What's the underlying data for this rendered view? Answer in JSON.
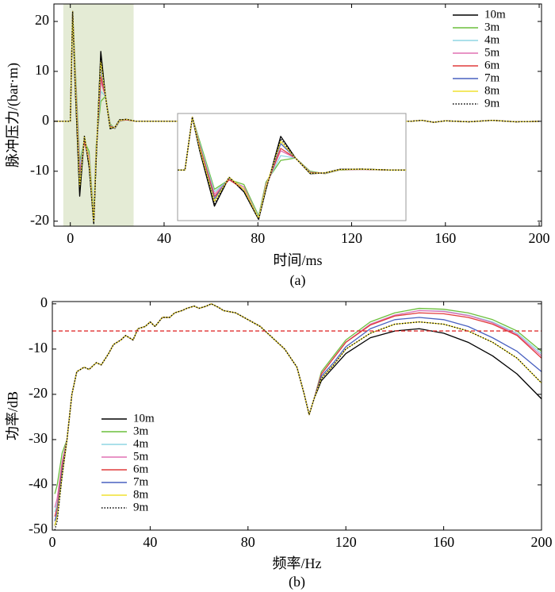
{
  "chart_data": [
    {
      "type": "line",
      "x_label": "时间/ms",
      "y_label": "脉冲压力/(bar·m)",
      "caption": "(a)",
      "xlim": [
        -7,
        201
      ],
      "ylim": [
        -21,
        23.5
      ],
      "xticks": [
        0,
        40,
        80,
        120,
        160,
        200
      ],
      "yticks": [
        -20,
        -10,
        0,
        10,
        20
      ],
      "legend": "upper right",
      "highlight_xspan": [
        -3,
        27
      ],
      "highlight_color": "#e4ebd5",
      "inset_xlim": [
        -1,
        30
      ],
      "x": [
        -7,
        0,
        1,
        2,
        4,
        6,
        8,
        10,
        11,
        13,
        15,
        17,
        19,
        21,
        24,
        28,
        40,
        100,
        145,
        150,
        155,
        160,
        170,
        180,
        190,
        200
      ],
      "series": [
        {
          "name": "10m",
          "color": "#000000",
          "values": [
            0,
            0,
            22,
            8,
            -15,
            -3,
            -9,
            -20.5,
            -8,
            14,
            5,
            -1.5,
            -1.2,
            0.3,
            0.4,
            0,
            0,
            0,
            0,
            0.2,
            -0.2,
            0.1,
            -0.1,
            0.2,
            -0.1,
            0
          ]
        },
        {
          "name": "3m",
          "color": "#6cbf3c",
          "values": [
            0,
            0,
            22,
            12,
            -8,
            -4,
            -6,
            -19,
            -5,
            4,
            5,
            -0.5,
            -1.5,
            0,
            0.3,
            0,
            0,
            0,
            0,
            0.2,
            -0.2,
            0.1,
            -0.1,
            0.2,
            -0.1,
            0
          ]
        },
        {
          "name": "4m",
          "color": "#8fd6e3",
          "values": [
            0,
            0,
            22,
            11,
            -9,
            -4,
            -7,
            -19.5,
            -6,
            6,
            5,
            -0.8,
            -1.4,
            0.1,
            0.3,
            0,
            0,
            0,
            0,
            0.2,
            -0.2,
            0.1,
            -0.1,
            0.2,
            -0.1,
            0
          ]
        },
        {
          "name": "5m",
          "color": "#e070b4",
          "values": [
            0,
            0,
            22,
            10,
            -10,
            -4,
            -7,
            -20,
            -6,
            8,
            5,
            -1,
            -1.4,
            0.1,
            0.3,
            0,
            0,
            0,
            0,
            0.2,
            -0.2,
            0.1,
            -0.1,
            0.2,
            -0.1,
            0
          ]
        },
        {
          "name": "6m",
          "color": "#e03c3c",
          "values": [
            0,
            0,
            22,
            10,
            -11,
            -4,
            -8,
            -20,
            -7,
            9,
            5,
            -1,
            -1.3,
            0.2,
            0.3,
            0,
            0,
            0,
            0,
            0.2,
            -0.2,
            0.1,
            -0.1,
            0.2,
            -0.1,
            0
          ]
        },
        {
          "name": "7m",
          "color": "#4860c0",
          "values": [
            0,
            0,
            22,
            9,
            -12,
            -3,
            -8,
            -20,
            -7,
            11,
            5,
            -1.2,
            -1.3,
            0.2,
            0.4,
            0,
            0,
            0,
            0,
            0.2,
            -0.2,
            0.1,
            -0.1,
            0.2,
            -0.1,
            0
          ]
        },
        {
          "name": "8m",
          "color": "#f0e030",
          "values": [
            0,
            0,
            22,
            9,
            -13,
            -3,
            -8,
            -20,
            -7,
            12,
            5,
            -1.3,
            -1.2,
            0.2,
            0.4,
            0,
            0,
            0,
            0,
            0.2,
            -0.2,
            0.1,
            -0.1,
            0.2,
            -0.1,
            0
          ]
        },
        {
          "name": "9m",
          "color": "#000000",
          "linestyle": "dotted",
          "values": [
            0,
            0,
            22,
            8,
            -14,
            -3,
            -9,
            -20.5,
            -8,
            13,
            5,
            -1.4,
            -1.2,
            0.3,
            0.4,
            0,
            0,
            0,
            0,
            0.2,
            -0.2,
            0.1,
            -0.1,
            0.2,
            -0.1,
            0
          ]
        }
      ]
    },
    {
      "type": "line",
      "x_label": "频率/Hz",
      "y_label": "功率/dB",
      "caption": "(b)",
      "xlim": [
        0,
        200
      ],
      "ylim": [
        -50,
        0.5
      ],
      "xticks": [
        0,
        40,
        80,
        120,
        160,
        200
      ],
      "yticks": [
        -50,
        -40,
        -30,
        -20,
        -10,
        0
      ],
      "legend": "lower left",
      "reference_line": -6,
      "reference_color": "#e03030",
      "x": [
        1,
        2,
        4,
        6,
        8,
        10,
        13,
        15,
        18,
        20,
        23,
        25,
        28,
        30,
        33,
        35,
        38,
        40,
        42,
        45,
        48,
        50,
        53,
        55,
        58,
        60,
        63,
        65,
        68,
        70,
        75,
        80,
        85,
        90,
        95,
        100,
        103,
        105,
        107,
        110,
        115,
        120,
        130,
        140,
        150,
        160,
        170,
        180,
        190,
        200
      ],
      "series": [
        {
          "name": "10m",
          "color": "#000000",
          "values": [
            -49,
            -47,
            -38,
            -30,
            -20,
            -15,
            -14,
            -14.5,
            -13,
            -13.5,
            -11,
            -9,
            -8,
            -7,
            -8,
            -5.5,
            -5,
            -4,
            -5,
            -3,
            -3,
            -2,
            -1.5,
            -1,
            -0.5,
            -1,
            -0.5,
            0,
            -0.8,
            -1.5,
            -2,
            -3.5,
            -5,
            -7.5,
            -10,
            -14,
            -20,
            -24.5,
            -21,
            -17,
            -14,
            -11,
            -7.5,
            -6,
            -5.5,
            -6.5,
            -8.5,
            -11.5,
            -15.5,
            -21
          ]
        },
        {
          "name": "3m",
          "color": "#6cbf3c",
          "values": [
            -42,
            -40,
            -33,
            -30,
            -20,
            -15,
            -14,
            -14.5,
            -13,
            -13.5,
            -11,
            -9,
            -8,
            -7,
            -8,
            -5.5,
            -5,
            -4,
            -5,
            -3,
            -3,
            -2,
            -1.5,
            -1,
            -0.5,
            -1,
            -0.5,
            0,
            -0.8,
            -1.5,
            -2,
            -3.5,
            -5,
            -7.5,
            -10,
            -14,
            -20,
            -24.5,
            -21,
            -15,
            -11.5,
            -8,
            -4,
            -2,
            -1,
            -1.2,
            -2,
            -3.5,
            -6,
            -10.5
          ]
        },
        {
          "name": "4m",
          "color": "#8fd6e3",
          "values": [
            -46,
            -44,
            -35,
            -30,
            -20,
            -15,
            -14,
            -14.5,
            -13,
            -13.5,
            -11,
            -9,
            -8,
            -7,
            -8,
            -5.5,
            -5,
            -4,
            -5,
            -3,
            -3,
            -2,
            -1.5,
            -1,
            -0.5,
            -1,
            -0.5,
            0,
            -0.8,
            -1.5,
            -2,
            -3.5,
            -5,
            -7.5,
            -10,
            -14,
            -20,
            -24.5,
            -21,
            -15.5,
            -12,
            -8.5,
            -4.5,
            -2.5,
            -1.5,
            -1.6,
            -2.5,
            -4,
            -6.5,
            -11
          ]
        },
        {
          "name": "5m",
          "color": "#e070b4",
          "values": [
            -45,
            -43,
            -35,
            -30,
            -20,
            -15,
            -14,
            -14.5,
            -13,
            -13.5,
            -11,
            -9,
            -8,
            -7,
            -8,
            -5.5,
            -5,
            -4,
            -5,
            -3,
            -3,
            -2,
            -1.5,
            -1,
            -0.5,
            -1,
            -0.5,
            0,
            -0.8,
            -1.5,
            -2,
            -3.5,
            -5,
            -7.5,
            -10,
            -14,
            -20,
            -24.5,
            -21,
            -15.5,
            -12,
            -8.5,
            -4.5,
            -2.5,
            -1.5,
            -1.7,
            -2.6,
            -4.2,
            -6.8,
            -11.5
          ]
        },
        {
          "name": "6m",
          "color": "#e03c3c",
          "values": [
            -47,
            -45,
            -36,
            -30,
            -20,
            -15,
            -14,
            -14.5,
            -13,
            -13.5,
            -11,
            -9,
            -8,
            -7,
            -8,
            -5.5,
            -5,
            -4,
            -5,
            -3,
            -3,
            -2,
            -1.5,
            -1,
            -0.5,
            -1,
            -0.5,
            0,
            -0.8,
            -1.5,
            -2,
            -3.5,
            -5,
            -7.5,
            -10,
            -14,
            -20,
            -24.5,
            -21,
            -15.5,
            -12,
            -8.5,
            -4.7,
            -2.7,
            -2,
            -2.2,
            -3,
            -4.5,
            -7,
            -12
          ]
        },
        {
          "name": "7m",
          "color": "#4860c0",
          "values": [
            -48,
            -46,
            -37,
            -30,
            -20,
            -15,
            -14,
            -14.5,
            -13,
            -13.5,
            -11,
            -9,
            -8,
            -7,
            -8,
            -5.5,
            -5,
            -4,
            -5,
            -3,
            -3,
            -2,
            -1.5,
            -1,
            -0.5,
            -1,
            -0.5,
            0,
            -0.8,
            -1.5,
            -2,
            -3.5,
            -5,
            -7.5,
            -10,
            -14,
            -20,
            -24.5,
            -21,
            -16,
            -13,
            -9.5,
            -5.5,
            -3.5,
            -3,
            -3.5,
            -5,
            -7.5,
            -10.5,
            -15
          ]
        },
        {
          "name": "8m",
          "color": "#f0e030",
          "values": [
            -49,
            -47,
            -38,
            -30,
            -20,
            -15,
            -14,
            -14.5,
            -13,
            -13.5,
            -11,
            -9,
            -8,
            -7,
            -8,
            -5.5,
            -5,
            -4,
            -5,
            -3,
            -3,
            -2,
            -1.5,
            -1,
            -0.5,
            -1,
            -0.5,
            0,
            -0.8,
            -1.5,
            -2,
            -3.5,
            -5,
            -7.5,
            -10,
            -14,
            -20,
            -24.5,
            -21,
            -16.5,
            -13.5,
            -10,
            -6.5,
            -4.5,
            -4,
            -4.5,
            -6,
            -8.5,
            -12,
            -17.5
          ]
        },
        {
          "name": "9m",
          "color": "#000000",
          "linestyle": "dotted",
          "values": [
            -50,
            -48,
            -38,
            -30,
            -20,
            -15,
            -14,
            -14.5,
            -13,
            -13.5,
            -11,
            -9,
            -8,
            -7,
            -8,
            -5.5,
            -5,
            -4,
            -5,
            -3,
            -3,
            -2,
            -1.5,
            -1,
            -0.5,
            -1,
            -0.5,
            0,
            -0.8,
            -1.5,
            -2,
            -3.5,
            -5,
            -7.5,
            -10,
            -14,
            -20,
            -24.5,
            -21,
            -16.5,
            -13.5,
            -10,
            -6.5,
            -4.5,
            -4,
            -4.5,
            -6,
            -8.5,
            -12,
            -17.5
          ]
        }
      ]
    }
  ]
}
